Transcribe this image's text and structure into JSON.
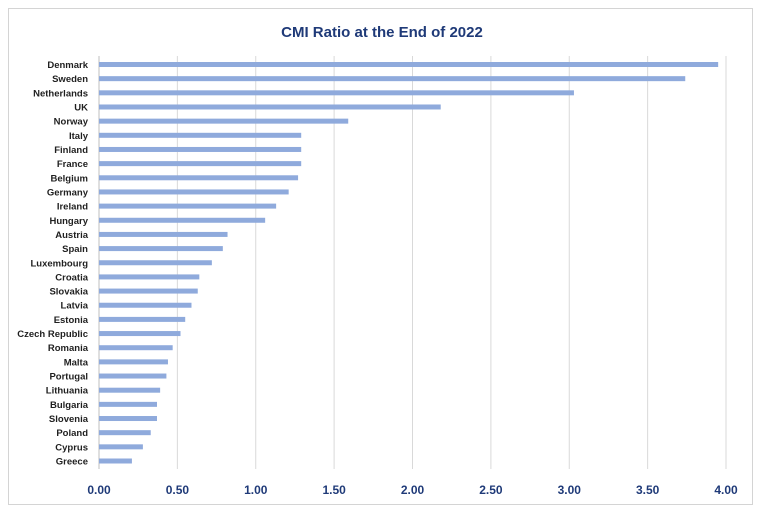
{
  "chart_data": {
    "type": "bar",
    "orientation": "horizontal",
    "title": "CMI Ratio at the End of 2022",
    "xlabel": "",
    "ylabel": "",
    "categories": [
      "Denmark",
      "Sweden",
      "Netherlands",
      "UK",
      "Norway",
      "Italy",
      "Finland",
      "France",
      "Belgium",
      "Germany",
      "Ireland",
      "Hungary",
      "Austria",
      "Spain",
      "Luxembourg",
      "Croatia",
      "Slovakia",
      "Latvia",
      "Estonia",
      "Czech Republic",
      "Romania",
      "Malta",
      "Portugal",
      "Lithuania",
      "Bulgaria",
      "Slovenia",
      "Poland",
      "Cyprus",
      "Greece"
    ],
    "values": [
      3.95,
      3.74,
      3.03,
      2.18,
      1.59,
      1.29,
      1.29,
      1.29,
      1.27,
      1.21,
      1.13,
      1.06,
      0.82,
      0.79,
      0.72,
      0.64,
      0.63,
      0.59,
      0.55,
      0.52,
      0.47,
      0.44,
      0.43,
      0.39,
      0.37,
      0.37,
      0.33,
      0.28,
      0.21
    ],
    "xlim": [
      0,
      4
    ],
    "x_ticks": [
      "0.00",
      "0.50",
      "1.00",
      "1.50",
      "2.00",
      "2.50",
      "3.00",
      "3.50",
      "4.00"
    ],
    "grid": "vertical",
    "legend": "none",
    "bar_color": "#8faadc",
    "title_color": "#1f3a78",
    "grid_color": "#d9d9d9"
  }
}
